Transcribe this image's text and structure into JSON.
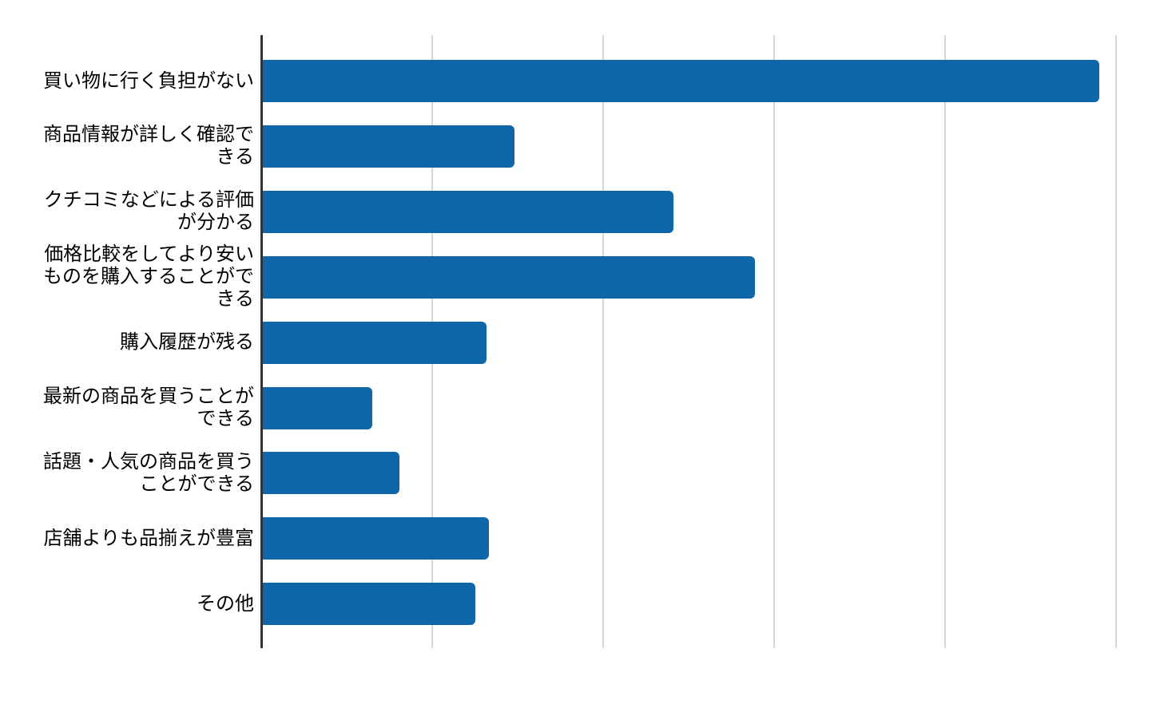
{
  "chart_data": {
    "type": "bar",
    "orientation": "horizontal",
    "title": "",
    "xlabel": "",
    "ylabel": "",
    "legend_position": "none",
    "grid": true,
    "tick_labels_visible": false,
    "xlim": [
      0,
      52.1
    ],
    "gridlines_x": [
      10,
      20,
      30,
      40,
      50
    ],
    "categories": [
      "買い物に行く負担がない",
      "商品情報が詳しく確認できる",
      "クチコミなどによる評価が分かる",
      "価格比較をしてより安いものを購入することができる",
      "購入履歴が残る",
      "最新の商品を買うことができる",
      "話題・人気の商品を買うことができる",
      "店舗よりも品揃えが豊富",
      "その他"
    ],
    "categories_display": [
      "買い物に行く負担がない",
      "商品情報が詳しく確認で\nきる",
      "クチコミなどによる評価\nが分かる",
      "価格比較をしてより安い\nものを購入することがで\nきる",
      "購入履歴が残る",
      "最新の商品を買うことが\nできる",
      "話題・人気の商品を買う\nことができる",
      "店舗よりも品揃えが豊富",
      "その他"
    ],
    "values": [
      49.0,
      14.8,
      24.1,
      28.9,
      13.2,
      6.5,
      8.1,
      13.3,
      12.5
    ],
    "colors": {
      "bar": "#0e67a9",
      "gridline": "#d6d6d6",
      "axis": "#333333",
      "label_text": "#000000",
      "background": "#ffffff"
    }
  }
}
